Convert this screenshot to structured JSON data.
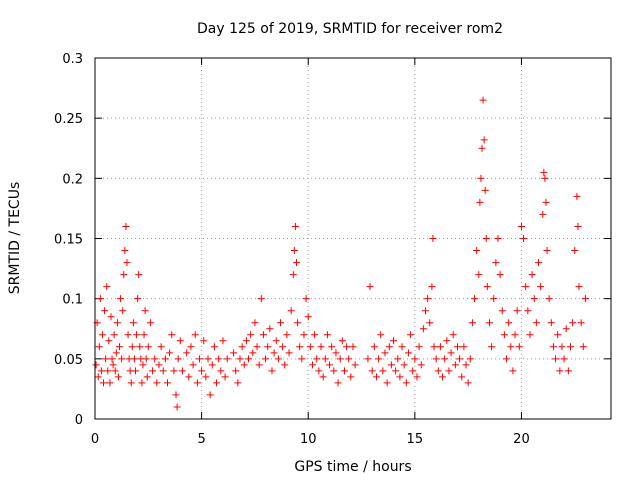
{
  "chart_data": {
    "type": "scatter",
    "title": "Day 125 of 2019, SRMTID for receiver rom2",
    "xlabel": "GPS time / hours",
    "ylabel": "SRMTID / TECUs",
    "xlim": [
      0,
      24.2
    ],
    "ylim": [
      0,
      0.3
    ],
    "xticks": [
      0,
      5,
      10,
      15,
      20
    ],
    "xtick_labels": [
      "0",
      "5",
      "10",
      "15",
      "20"
    ],
    "yticks": [
      0,
      0.05,
      0.1,
      0.15,
      0.2,
      0.25,
      0.3
    ],
    "ytick_labels": [
      "0",
      "0.05",
      "0.1",
      "0.15",
      "0.2",
      "0.25",
      "0.3"
    ],
    "grid": true,
    "marker": "+",
    "color": "#ff0000",
    "series": [
      {
        "name": "SRMTID",
        "points": [
          [
            0.05,
            0.045
          ],
          [
            0.1,
            0.08
          ],
          [
            0.15,
            0.035
          ],
          [
            0.2,
            0.06
          ],
          [
            0.25,
            0.1
          ],
          [
            0.3,
            0.04
          ],
          [
            0.35,
            0.07
          ],
          [
            0.4,
            0.03
          ],
          [
            0.45,
            0.09
          ],
          [
            0.5,
            0.05
          ],
          [
            0.55,
            0.11
          ],
          [
            0.6,
            0.04
          ],
          [
            0.65,
            0.065
          ],
          [
            0.7,
            0.03
          ],
          [
            0.75,
            0.085
          ],
          [
            0.8,
            0.05
          ],
          [
            0.85,
            0.045
          ],
          [
            0.9,
            0.07
          ],
          [
            0.95,
            0.04
          ],
          [
            1.0,
            0.055
          ],
          [
            1.05,
            0.08
          ],
          [
            1.1,
            0.035
          ],
          [
            1.15,
            0.06
          ],
          [
            1.2,
            0.1
          ],
          [
            1.25,
            0.05
          ],
          [
            1.3,
            0.09
          ],
          [
            1.35,
            0.12
          ],
          [
            1.4,
            0.14
          ],
          [
            1.45,
            0.16
          ],
          [
            1.5,
            0.13
          ],
          [
            1.55,
            0.07
          ],
          [
            1.6,
            0.05
          ],
          [
            1.65,
            0.04
          ],
          [
            1.7,
            0.03
          ],
          [
            1.75,
            0.06
          ],
          [
            1.8,
            0.08
          ],
          [
            1.85,
            0.05
          ],
          [
            1.9,
            0.04
          ],
          [
            1.95,
            0.07
          ],
          [
            2.0,
            0.1
          ],
          [
            2.05,
            0.12
          ],
          [
            2.1,
            0.06
          ],
          [
            2.15,
            0.05
          ],
          [
            2.2,
            0.03
          ],
          [
            2.25,
            0.045
          ],
          [
            2.3,
            0.07
          ],
          [
            2.35,
            0.09
          ],
          [
            2.4,
            0.05
          ],
          [
            2.45,
            0.035
          ],
          [
            2.5,
            0.06
          ],
          [
            2.6,
            0.08
          ],
          [
            2.7,
            0.04
          ],
          [
            2.8,
            0.05
          ],
          [
            2.9,
            0.03
          ],
          [
            3.0,
            0.045
          ],
          [
            3.1,
            0.06
          ],
          [
            3.2,
            0.04
          ],
          [
            3.3,
            0.05
          ],
          [
            3.4,
            0.03
          ],
          [
            3.5,
            0.055
          ],
          [
            3.6,
            0.07
          ],
          [
            3.7,
            0.04
          ],
          [
            3.8,
            0.02
          ],
          [
            3.85,
            0.01
          ],
          [
            3.9,
            0.05
          ],
          [
            4.0,
            0.065
          ],
          [
            4.1,
            0.04
          ],
          [
            4.3,
            0.055
          ],
          [
            4.4,
            0.035
          ],
          [
            4.5,
            0.06
          ],
          [
            4.6,
            0.045
          ],
          [
            4.7,
            0.07
          ],
          [
            4.8,
            0.03
          ],
          [
            4.9,
            0.05
          ],
          [
            5.0,
            0.04
          ],
          [
            5.1,
            0.065
          ],
          [
            5.2,
            0.035
          ],
          [
            5.3,
            0.05
          ],
          [
            5.4,
            0.02
          ],
          [
            5.5,
            0.045
          ],
          [
            5.6,
            0.06
          ],
          [
            5.7,
            0.03
          ],
          [
            5.8,
            0.05
          ],
          [
            5.9,
            0.04
          ],
          [
            6.0,
            0.065
          ],
          [
            6.1,
            0.035
          ],
          [
            6.2,
            0.05
          ],
          [
            6.5,
            0.055
          ],
          [
            6.6,
            0.04
          ],
          [
            6.7,
            0.03
          ],
          [
            6.8,
            0.05
          ],
          [
            6.9,
            0.06
          ],
          [
            7.0,
            0.045
          ],
          [
            7.1,
            0.065
          ],
          [
            7.2,
            0.05
          ],
          [
            7.3,
            0.07
          ],
          [
            7.4,
            0.055
          ],
          [
            7.5,
            0.08
          ],
          [
            7.6,
            0.06
          ],
          [
            7.7,
            0.045
          ],
          [
            7.8,
            0.1
          ],
          [
            7.9,
            0.07
          ],
          [
            8.0,
            0.05
          ],
          [
            8.1,
            0.06
          ],
          [
            8.2,
            0.075
          ],
          [
            8.3,
            0.04
          ],
          [
            8.4,
            0.055
          ],
          [
            8.5,
            0.065
          ],
          [
            8.6,
            0.05
          ],
          [
            8.7,
            0.08
          ],
          [
            8.8,
            0.06
          ],
          [
            8.9,
            0.045
          ],
          [
            9.0,
            0.07
          ],
          [
            9.1,
            0.055
          ],
          [
            9.2,
            0.09
          ],
          [
            9.3,
            0.12
          ],
          [
            9.35,
            0.14
          ],
          [
            9.4,
            0.16
          ],
          [
            9.45,
            0.13
          ],
          [
            9.5,
            0.08
          ],
          [
            9.6,
            0.06
          ],
          [
            9.7,
            0.05
          ],
          [
            9.8,
            0.07
          ],
          [
            9.9,
            0.1
          ],
          [
            10.0,
            0.085
          ],
          [
            10.1,
            0.06
          ],
          [
            10.2,
            0.045
          ],
          [
            10.3,
            0.07
          ],
          [
            10.4,
            0.05
          ],
          [
            10.5,
            0.04
          ],
          [
            10.6,
            0.06
          ],
          [
            10.7,
            0.035
          ],
          [
            10.8,
            0.05
          ],
          [
            10.9,
            0.07
          ],
          [
            11.0,
            0.045
          ],
          [
            11.1,
            0.06
          ],
          [
            11.2,
            0.04
          ],
          [
            11.3,
            0.055
          ],
          [
            11.4,
            0.03
          ],
          [
            11.5,
            0.05
          ],
          [
            11.6,
            0.065
          ],
          [
            11.7,
            0.04
          ],
          [
            11.8,
            0.06
          ],
          [
            11.9,
            0.05
          ],
          [
            12.0,
            0.035
          ],
          [
            12.1,
            0.06
          ],
          [
            12.2,
            0.045
          ],
          [
            12.8,
            0.05
          ],
          [
            12.9,
            0.11
          ],
          [
            13.0,
            0.04
          ],
          [
            13.1,
            0.06
          ],
          [
            13.2,
            0.035
          ],
          [
            13.3,
            0.05
          ],
          [
            13.4,
            0.07
          ],
          [
            13.5,
            0.04
          ],
          [
            13.6,
            0.055
          ],
          [
            13.7,
            0.03
          ],
          [
            13.8,
            0.06
          ],
          [
            13.9,
            0.045
          ],
          [
            14.0,
            0.065
          ],
          [
            14.1,
            0.04
          ],
          [
            14.2,
            0.05
          ],
          [
            14.3,
            0.035
          ],
          [
            14.4,
            0.06
          ],
          [
            14.5,
            0.045
          ],
          [
            14.6,
            0.03
          ],
          [
            14.7,
            0.055
          ],
          [
            14.8,
            0.07
          ],
          [
            14.9,
            0.04
          ],
          [
            15.0,
            0.05
          ],
          [
            15.1,
            0.035
          ],
          [
            15.2,
            0.06
          ],
          [
            15.3,
            0.045
          ],
          [
            15.4,
            0.075
          ],
          [
            15.5,
            0.09
          ],
          [
            15.6,
            0.1
          ],
          [
            15.7,
            0.08
          ],
          [
            15.8,
            0.11
          ],
          [
            15.85,
            0.15
          ],
          [
            15.9,
            0.06
          ],
          [
            16.0,
            0.05
          ],
          [
            16.1,
            0.04
          ],
          [
            16.2,
            0.06
          ],
          [
            16.3,
            0.035
          ],
          [
            16.4,
            0.05
          ],
          [
            16.5,
            0.065
          ],
          [
            16.6,
            0.04
          ],
          [
            16.7,
            0.055
          ],
          [
            16.8,
            0.07
          ],
          [
            16.9,
            0.045
          ],
          [
            17.0,
            0.06
          ],
          [
            17.1,
            0.05
          ],
          [
            17.2,
            0.035
          ],
          [
            17.3,
            0.06
          ],
          [
            17.4,
            0.045
          ],
          [
            17.5,
            0.03
          ],
          [
            17.6,
            0.05
          ],
          [
            17.7,
            0.08
          ],
          [
            17.8,
            0.1
          ],
          [
            17.9,
            0.14
          ],
          [
            18.0,
            0.12
          ],
          [
            18.05,
            0.18
          ],
          [
            18.1,
            0.2
          ],
          [
            18.15,
            0.225
          ],
          [
            18.2,
            0.265
          ],
          [
            18.25,
            0.232
          ],
          [
            18.3,
            0.19
          ],
          [
            18.35,
            0.15
          ],
          [
            18.4,
            0.11
          ],
          [
            18.5,
            0.08
          ],
          [
            18.6,
            0.06
          ],
          [
            18.7,
            0.1
          ],
          [
            18.8,
            0.13
          ],
          [
            18.9,
            0.15
          ],
          [
            19.0,
            0.12
          ],
          [
            19.1,
            0.09
          ],
          [
            19.2,
            0.07
          ],
          [
            19.3,
            0.05
          ],
          [
            19.4,
            0.08
          ],
          [
            19.5,
            0.06
          ],
          [
            19.6,
            0.04
          ],
          [
            19.7,
            0.07
          ],
          [
            19.8,
            0.09
          ],
          [
            19.9,
            0.06
          ],
          [
            20.0,
            0.16
          ],
          [
            20.1,
            0.15
          ],
          [
            20.2,
            0.11
          ],
          [
            20.3,
            0.09
          ],
          [
            20.4,
            0.07
          ],
          [
            20.5,
            0.12
          ],
          [
            20.6,
            0.1
          ],
          [
            20.7,
            0.08
          ],
          [
            20.8,
            0.13
          ],
          [
            20.9,
            0.11
          ],
          [
            21.0,
            0.17
          ],
          [
            21.05,
            0.205
          ],
          [
            21.1,
            0.2
          ],
          [
            21.15,
            0.18
          ],
          [
            21.2,
            0.14
          ],
          [
            21.3,
            0.1
          ],
          [
            21.4,
            0.08
          ],
          [
            21.5,
            0.06
          ],
          [
            21.6,
            0.05
          ],
          [
            21.7,
            0.07
          ],
          [
            21.8,
            0.04
          ],
          [
            21.9,
            0.06
          ],
          [
            22.0,
            0.05
          ],
          [
            22.1,
            0.075
          ],
          [
            22.2,
            0.04
          ],
          [
            22.3,
            0.06
          ],
          [
            22.4,
            0.08
          ],
          [
            22.5,
            0.14
          ],
          [
            22.6,
            0.185
          ],
          [
            22.65,
            0.16
          ],
          [
            22.7,
            0.11
          ],
          [
            22.8,
            0.08
          ],
          [
            22.9,
            0.06
          ],
          [
            23.0,
            0.1
          ]
        ]
      }
    ]
  }
}
